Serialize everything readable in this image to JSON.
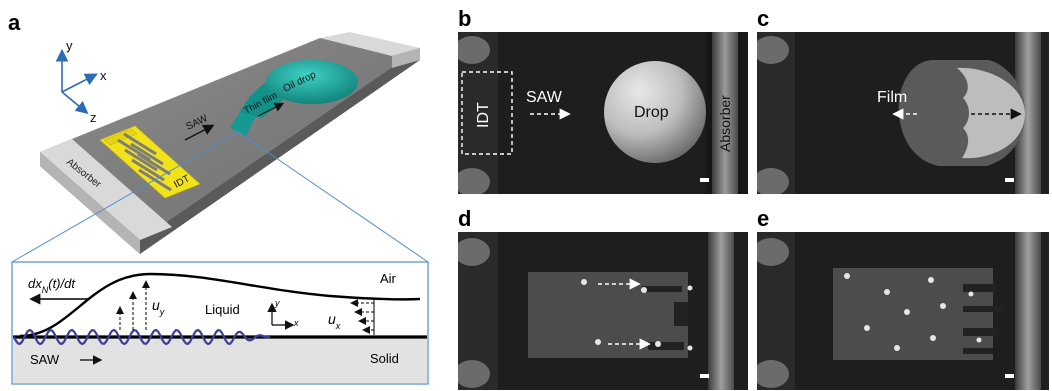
{
  "panel_letters": {
    "a": "a",
    "b": "b",
    "c": "c",
    "d": "d",
    "e": "e"
  },
  "panel_a": {
    "axes": {
      "y": "y",
      "x": "x",
      "z": "z"
    },
    "labels": {
      "absorber": "Absorber",
      "idt": "IDT",
      "saw": "SAW",
      "thin_film": "Thin film",
      "oil_drop": "Oil drop"
    },
    "inset": {
      "velocity": "dx",
      "velocity_sub": "N",
      "velocity_rest": "(t)/dt",
      "air": "Air",
      "liquid": "Liquid",
      "solid": "Solid",
      "saw": "SAW",
      "uy": "u",
      "uy_sub": "y",
      "ux": "u",
      "ux_sub": "x",
      "ax_x": "x",
      "ax_y": "y"
    }
  },
  "panel_b": {
    "idt": "IDT",
    "saw": "SAW",
    "drop": "Drop",
    "absorber": "Absorber"
  },
  "panel_c": {
    "film": "Film"
  },
  "colors": {
    "substrate": "#7d7d7d",
    "idt_gold": "#f2e21a",
    "drop_teal": "#1aa39a",
    "wave": "#3b3f9a",
    "inset_border": "#4f8ecf",
    "arrow_blue": "#2a6db5"
  }
}
